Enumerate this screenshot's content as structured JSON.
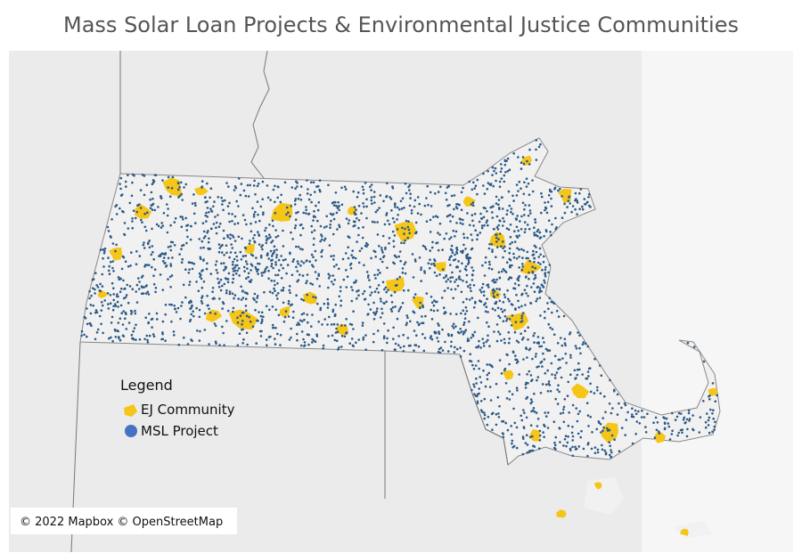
{
  "title": "Mass Solar Loan Projects & Environmental Justice Communities",
  "legend": {
    "title": "Legend",
    "items": [
      "EJ Community",
      "MSL Project"
    ]
  },
  "attribution": "© 2022 Mapbox © OpenStreetMap"
}
